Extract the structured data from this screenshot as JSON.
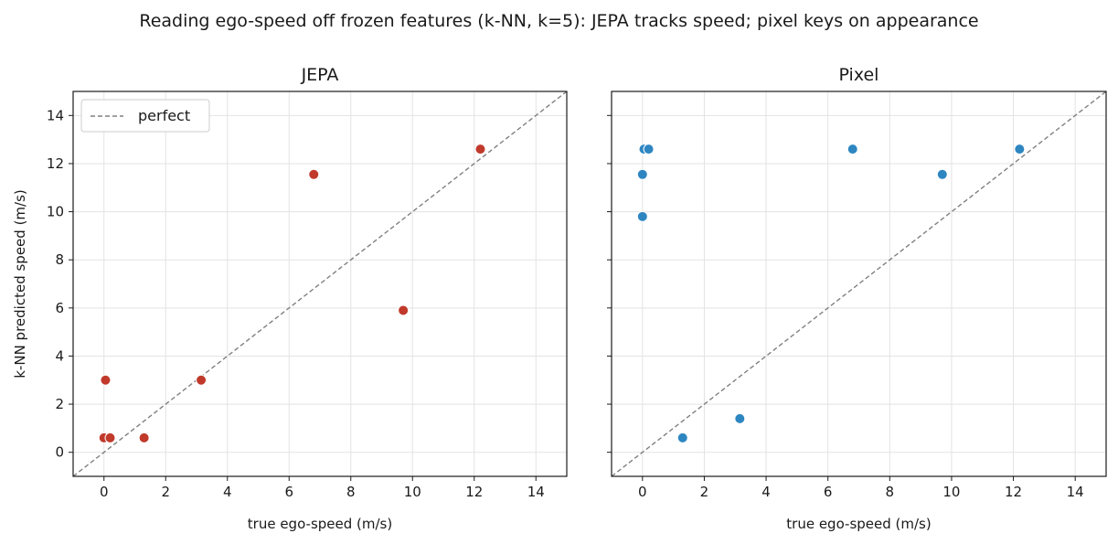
{
  "figure_title": "Reading ego-speed off frozen features (k-NN, k=5): JEPA tracks speed; pixel keys on appearance",
  "chart_data": [
    {
      "type": "scatter",
      "title": "JEPA",
      "xlabel": "true ego-speed (m/s)",
      "ylabel": "k-NN predicted speed (m/s)",
      "xlim": [
        -1,
        15
      ],
      "ylim": [
        -1,
        15
      ],
      "xticks": [
        0,
        2,
        4,
        6,
        8,
        10,
        12,
        14
      ],
      "yticks": [
        0,
        2,
        4,
        6,
        8,
        10,
        12,
        14
      ],
      "grid": true,
      "legend": {
        "position": "top-left",
        "entries": [
          "perfect"
        ]
      },
      "reference_line": {
        "label": "perfect",
        "color": "#808080",
        "style": "dashed"
      },
      "color": "#c0392b",
      "points": [
        {
          "x": 0.0,
          "y": 0.6
        },
        {
          "x": 0.2,
          "y": 0.6
        },
        {
          "x": 0.05,
          "y": 3.0
        },
        {
          "x": 1.3,
          "y": 0.6
        },
        {
          "x": 3.15,
          "y": 3.0
        },
        {
          "x": 6.8,
          "y": 11.55
        },
        {
          "x": 9.7,
          "y": 5.9
        },
        {
          "x": 12.2,
          "y": 12.6
        }
      ]
    },
    {
      "type": "scatter",
      "title": "Pixel",
      "xlabel": "true ego-speed (m/s)",
      "ylabel": "",
      "xlim": [
        -1,
        15
      ],
      "ylim": [
        -1,
        15
      ],
      "xticks": [
        0,
        2,
        4,
        6,
        8,
        10,
        12,
        14
      ],
      "yticks": [
        0,
        2,
        4,
        6,
        8,
        10,
        12,
        14
      ],
      "grid": true,
      "reference_line": {
        "label": "perfect",
        "color": "#808080",
        "style": "dashed"
      },
      "color": "#2e86c1",
      "points": [
        {
          "x": 0.05,
          "y": 12.6
        },
        {
          "x": 0.2,
          "y": 12.6
        },
        {
          "x": 0.0,
          "y": 11.55
        },
        {
          "x": 0.0,
          "y": 9.8
        },
        {
          "x": 1.3,
          "y": 0.6
        },
        {
          "x": 3.15,
          "y": 1.4
        },
        {
          "x": 6.8,
          "y": 12.6
        },
        {
          "x": 9.7,
          "y": 11.55
        },
        {
          "x": 12.2,
          "y": 12.6
        }
      ]
    }
  ]
}
